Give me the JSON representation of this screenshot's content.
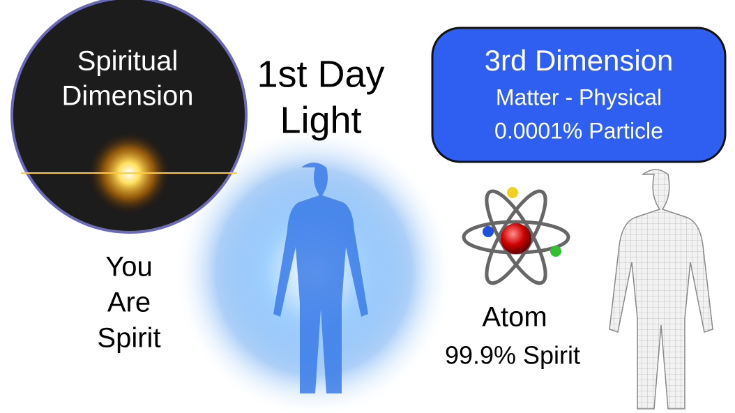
{
  "circle": {
    "lines": [
      "Spiritual",
      "Dimension"
    ]
  },
  "heading": {
    "lines": [
      "1st Day",
      "Light"
    ]
  },
  "box": {
    "title": "3rd Dimension",
    "lines": [
      "Matter - Physical",
      "0.0001% Particle"
    ]
  },
  "caption_left": {
    "lines": [
      "You",
      "Are",
      "Spirit"
    ]
  },
  "atom": {
    "label": "Atom",
    "sublabel": "99.9% Spirit"
  }
}
